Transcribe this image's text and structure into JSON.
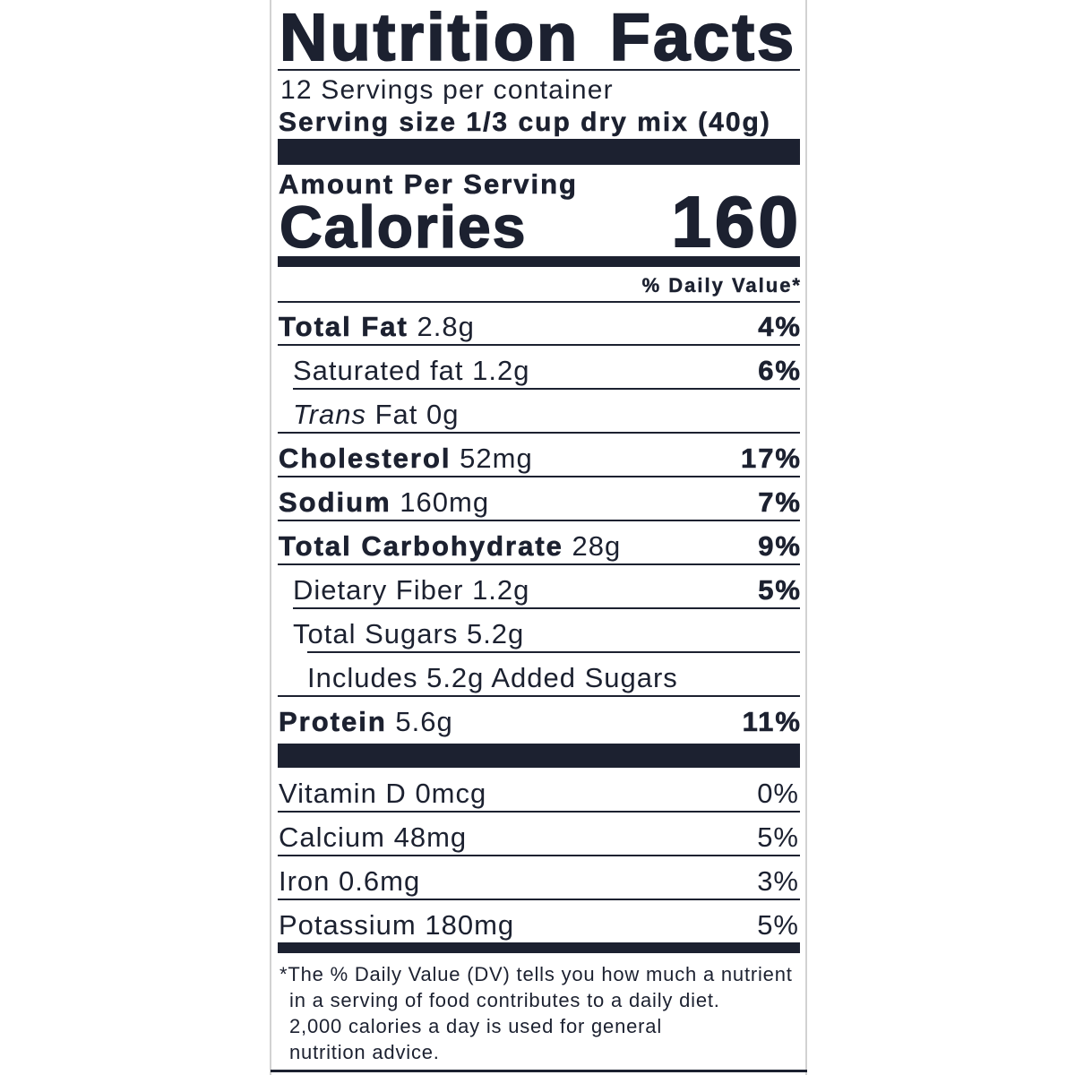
{
  "title": "Nutrition Facts",
  "servings": "12 Servings per container",
  "serving_size": "Serving size 1/3 cup dry mix (40g)",
  "amount_per_serving": "Amount Per Serving",
  "calories": {
    "label": "Calories",
    "value": "160"
  },
  "daily_value_header": "% Daily Value*",
  "nutrients": [
    {
      "name": "Total Fat",
      "amount": "2.8g",
      "dv": "4%"
    },
    {
      "name": "Saturated fat",
      "amount": "1.2g",
      "dv": "6%"
    },
    {
      "name_italic": "Trans",
      "name": "Fat",
      "amount": "0g"
    },
    {
      "name": "Cholesterol",
      "amount": "52mg",
      "dv": "17%"
    },
    {
      "name": "Sodium",
      "amount": "160mg",
      "dv": "7%"
    },
    {
      "name": "Total Carbohydrate",
      "amount": "28g",
      "dv": "9%"
    },
    {
      "name": "Dietary Fiber",
      "amount": "1.2g",
      "dv": "5%"
    },
    {
      "name": "Total Sugars",
      "amount": "5.2g"
    },
    {
      "text": "Includes 5.2g Added Sugars"
    },
    {
      "name": "Protein",
      "amount": "5.6g",
      "dv": "11%"
    }
  ],
  "vitamins_minerals": [
    {
      "name": "Vitamin D",
      "amount": "0mcg",
      "dv": "0%"
    },
    {
      "name": "Calcium",
      "amount": "48mg",
      "dv": "5%"
    },
    {
      "name": "Iron",
      "amount": "0.6mg",
      "dv": "3%"
    },
    {
      "name": "Potassium",
      "amount": "180mg",
      "dv": "5%"
    }
  ],
  "footnote": [
    "*The % Daily Value (DV) tells you how much a nutrient",
    "in a serving of food contributes to a daily diet.",
    "2,000 calories a day is used for general",
    "nutrition advice."
  ],
  "colors": {
    "ink": "#1c2130",
    "frame": "#d2d2d2"
  }
}
